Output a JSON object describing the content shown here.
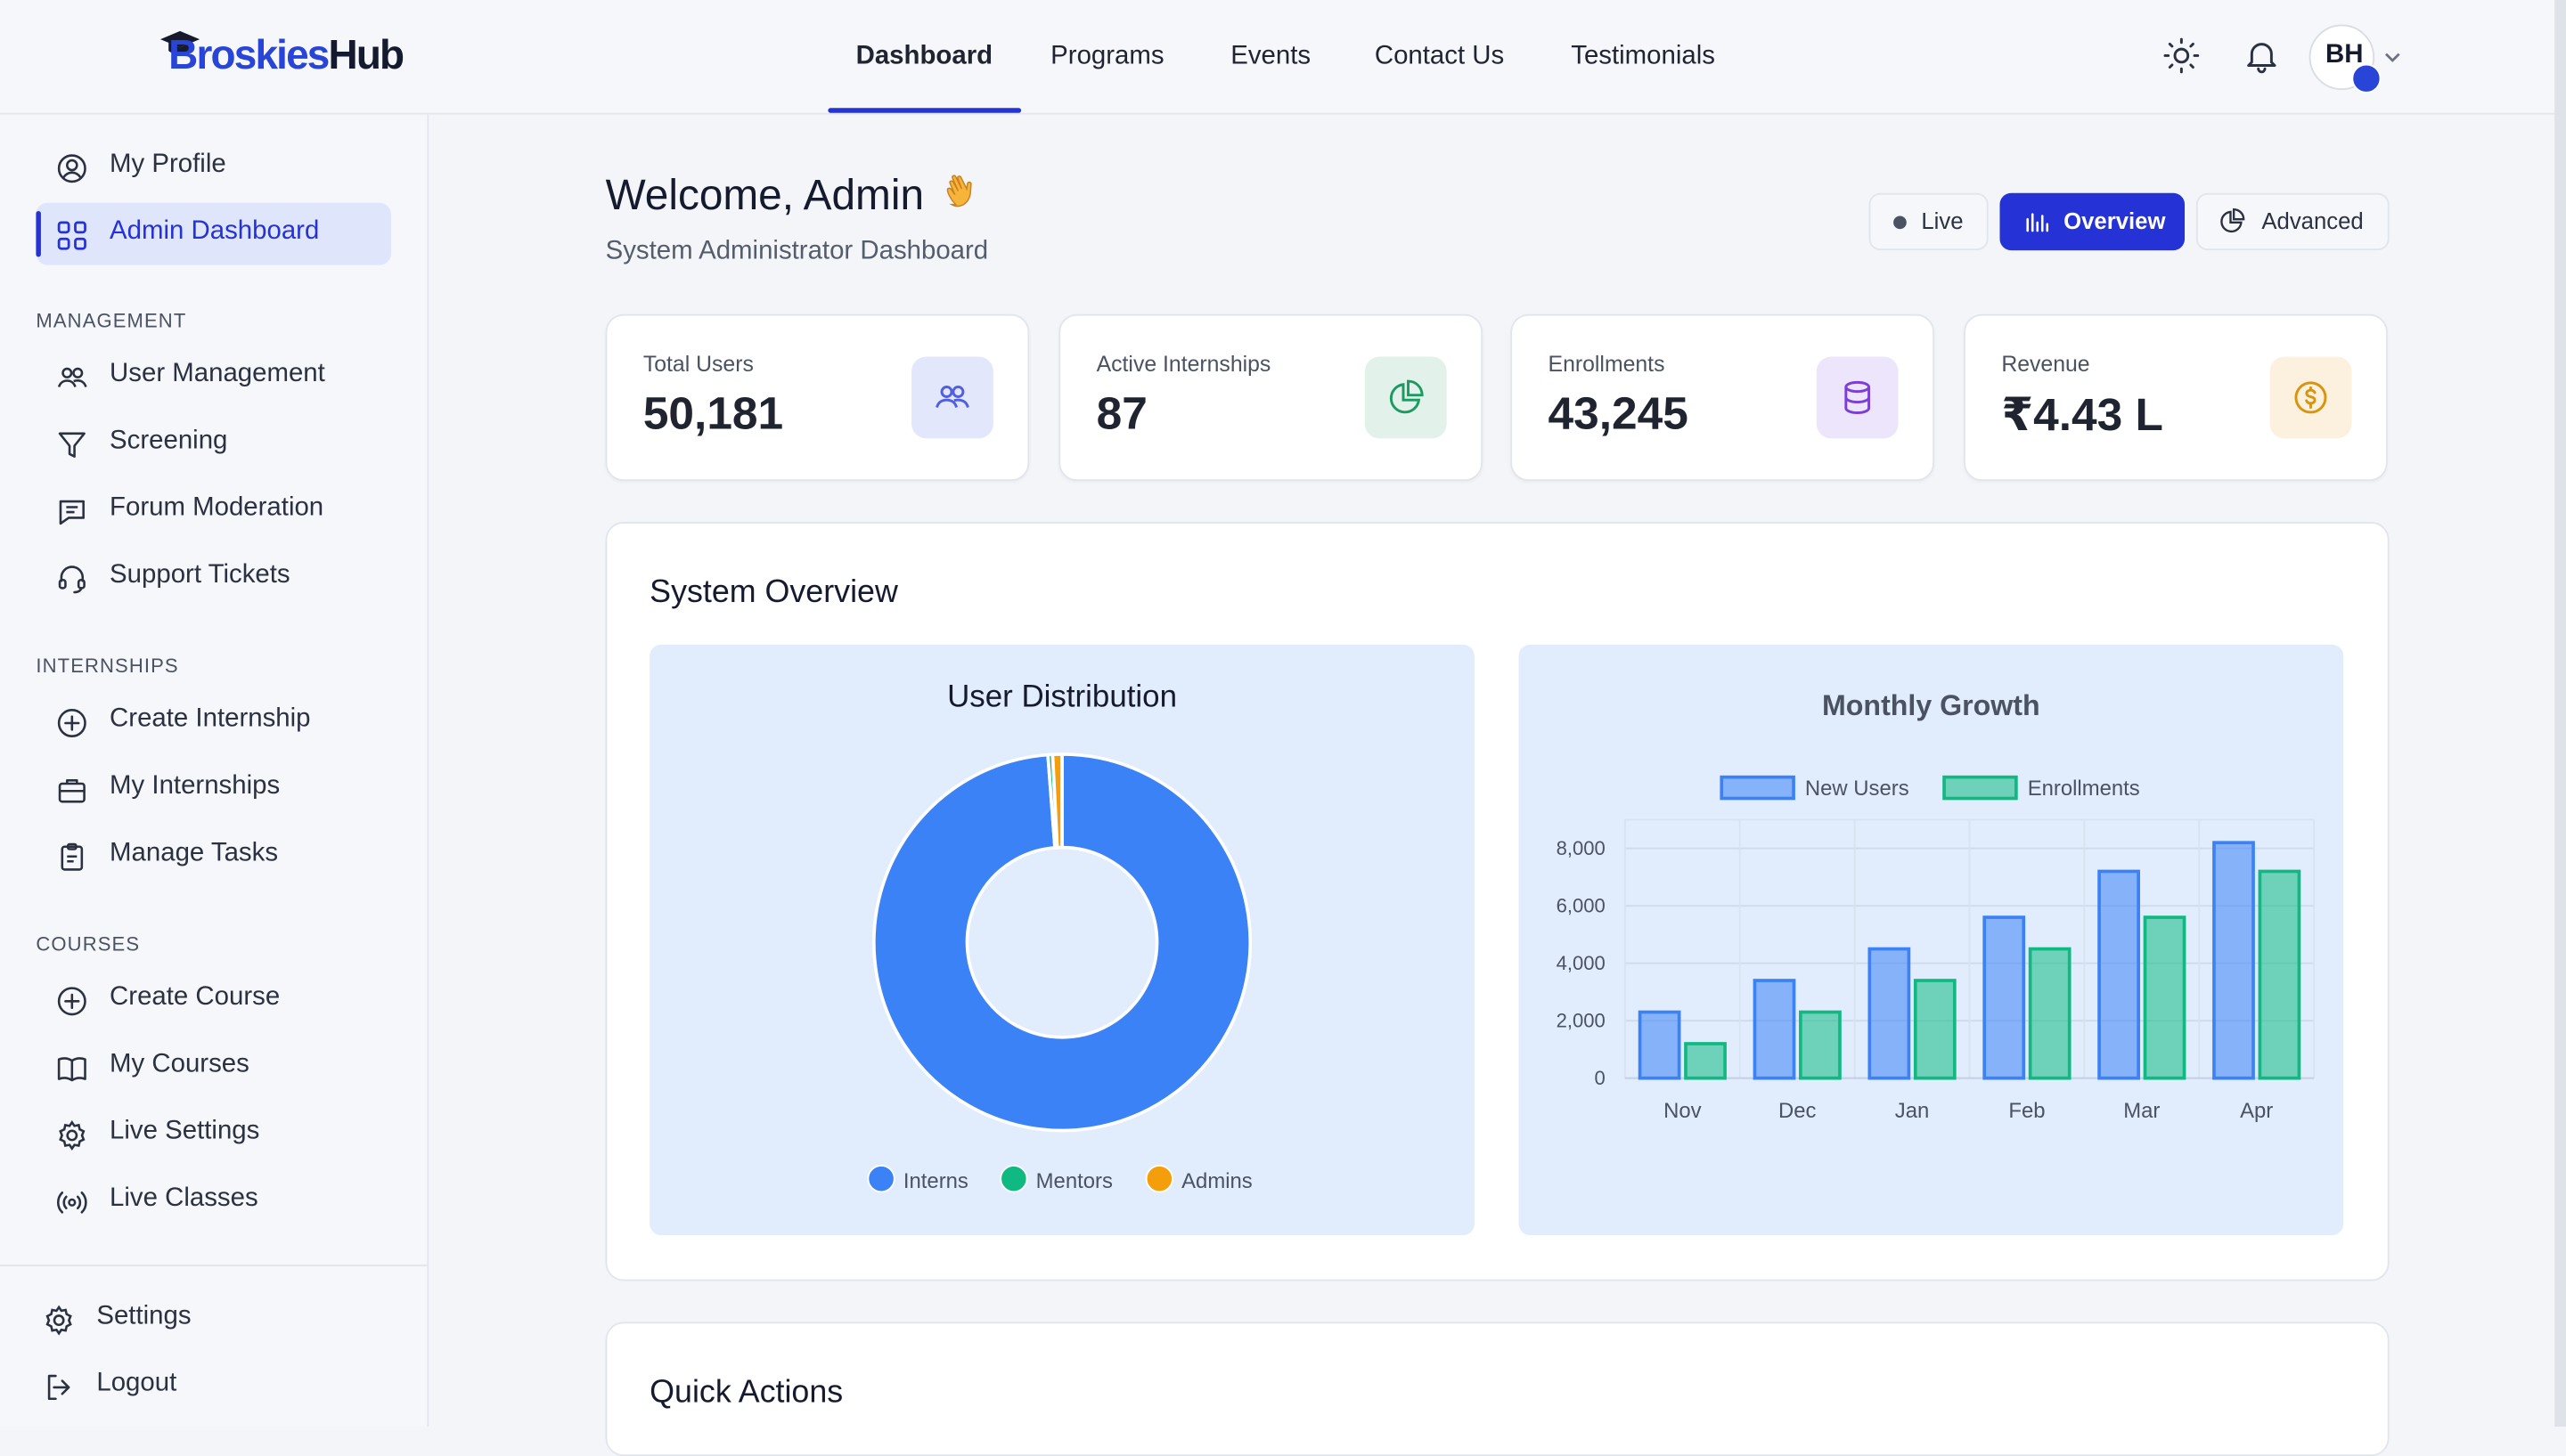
{
  "brand": {
    "part1": "Broskies",
    "part2": "Hub"
  },
  "nav": {
    "items": [
      "Dashboard",
      "Programs",
      "Events",
      "Contact Us",
      "Testimonials"
    ],
    "active": "Dashboard"
  },
  "user": {
    "initials": "BH"
  },
  "sidebar": {
    "top": [
      {
        "label": "My Profile",
        "icon": "user-circle-icon"
      },
      {
        "label": "Admin Dashboard",
        "icon": "grid-icon",
        "active": true
      }
    ],
    "sections": [
      {
        "heading": "MANAGEMENT",
        "items": [
          "User Management",
          "Screening",
          "Forum Moderation",
          "Support Tickets"
        ]
      },
      {
        "heading": "INTERNSHIPS",
        "items": [
          "Create Internship",
          "My Internships",
          "Manage Tasks"
        ]
      },
      {
        "heading": "COURSES",
        "items": [
          "Create Course",
          "My Courses",
          "Live Settings",
          "Live Classes"
        ]
      }
    ],
    "bottom": [
      "Settings",
      "Logout"
    ]
  },
  "header": {
    "welcome": "Welcome, Admin",
    "subtitle": "System Administrator Dashboard",
    "modes": {
      "live": "Live",
      "overview": "Overview",
      "advanced": "Advanced"
    }
  },
  "stats": [
    {
      "label": "Total Users",
      "value": "50,181",
      "icon": "users-icon",
      "color": "#4f5fe0"
    },
    {
      "label": "Active Internships",
      "value": "87",
      "icon": "pie-icon",
      "color": "#1c9a64"
    },
    {
      "label": "Enrollments",
      "value": "43,245",
      "icon": "database-icon",
      "color": "#7b3fd8"
    },
    {
      "label": "Revenue",
      "value": "₹4.43 L",
      "icon": "coin-icon",
      "color": "#d9940f"
    }
  ],
  "overview": {
    "title": "System Overview",
    "quick_actions": "Quick Actions"
  },
  "chart_data": [
    {
      "type": "pie",
      "title": "User Distribution",
      "categories": [
        "Interns",
        "Mentors",
        "Admins"
      ],
      "values": [
        98.8,
        0.4,
        0.8
      ],
      "colors": [
        "#3b82f6",
        "#10b981",
        "#f59e0b"
      ],
      "donut": true,
      "legend": "bottom"
    },
    {
      "type": "bar",
      "title": "Monthly Growth",
      "categories": [
        "Nov",
        "Dec",
        "Jan",
        "Feb",
        "Mar",
        "Apr"
      ],
      "series": [
        {
          "name": "New Users",
          "values": [
            2300,
            3400,
            4500,
            5600,
            7200,
            8200
          ],
          "color": "#3b82f6"
        },
        {
          "name": "Enrollments",
          "values": [
            1200,
            2300,
            3400,
            4500,
            5600,
            7200
          ],
          "color": "#10b981"
        }
      ],
      "ylim": [
        0,
        9000
      ],
      "yticks": [
        0,
        2000,
        4000,
        6000,
        8000
      ],
      "ytick_labels": [
        "0",
        "2,000",
        "4,000",
        "6,000",
        "8,000"
      ],
      "grid": true,
      "legend": "top"
    }
  ]
}
